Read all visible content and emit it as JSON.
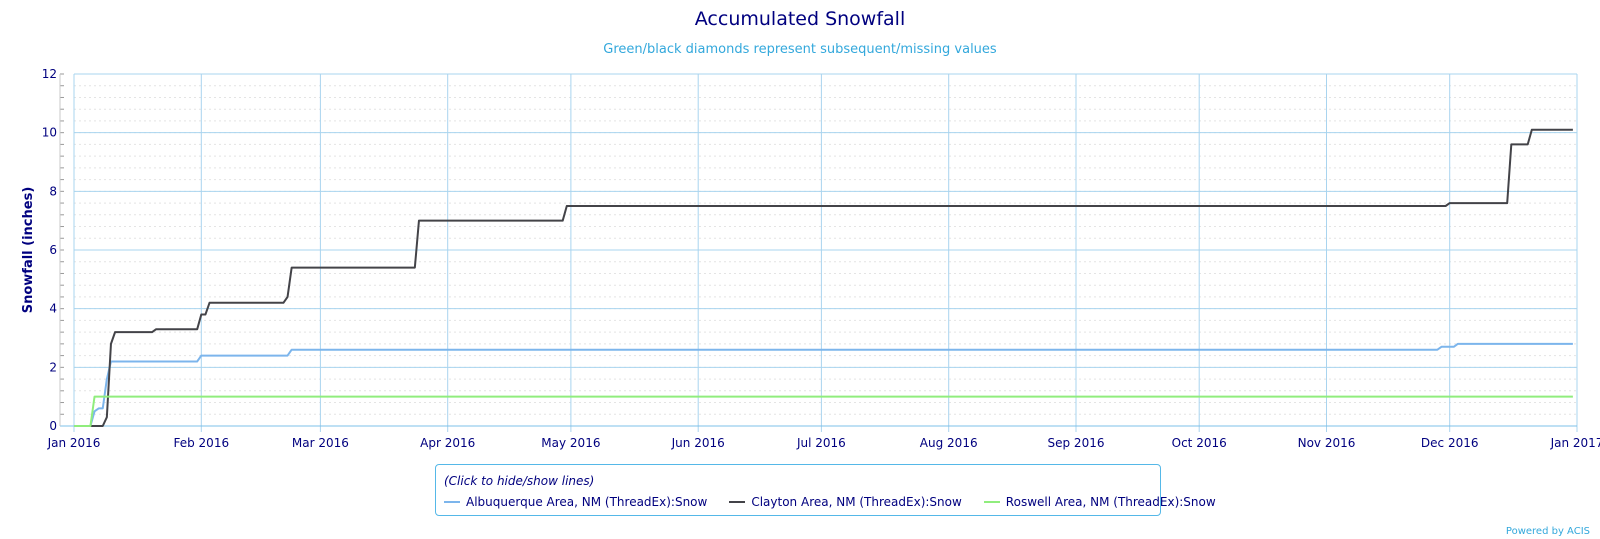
{
  "chart_data": {
    "type": "line",
    "title": "Accumulated Snowfall",
    "subtitle": "Green/black diamonds represent subsequent/missing values",
    "ylabel": "Snowfall (inches)",
    "xlabel": "",
    "ylim": [
      0,
      12
    ],
    "y_ticks": [
      0,
      2,
      4,
      6,
      8,
      10,
      12
    ],
    "xlim": [
      "2016-01-01",
      "2017-01-01"
    ],
    "x_ticks": [
      {
        "date": "2016-01-01",
        "label": "Jan 2016"
      },
      {
        "date": "2016-02-01",
        "label": "Feb 2016"
      },
      {
        "date": "2016-03-01",
        "label": "Mar 2016"
      },
      {
        "date": "2016-04-01",
        "label": "Apr 2016"
      },
      {
        "date": "2016-05-01",
        "label": "May 2016"
      },
      {
        "date": "2016-06-01",
        "label": "Jun 2016"
      },
      {
        "date": "2016-07-01",
        "label": "Jul 2016"
      },
      {
        "date": "2016-08-01",
        "label": "Aug 2016"
      },
      {
        "date": "2016-09-01",
        "label": "Sep 2016"
      },
      {
        "date": "2016-10-01",
        "label": "Oct 2016"
      },
      {
        "date": "2016-11-01",
        "label": "Nov 2016"
      },
      {
        "date": "2016-12-01",
        "label": "Dec 2016"
      },
      {
        "date": "2017-01-01",
        "label": "Jan 2017"
      }
    ],
    "grid": true,
    "legend_position": "bottom-center",
    "legend_hint": "(Click to hide/show lines)",
    "series": [
      {
        "name": "Albuquerque Area, NM (ThreadEx):Snow",
        "color": "#7cb5ec",
        "points": [
          [
            "2016-01-01",
            0
          ],
          [
            "2016-01-05",
            0
          ],
          [
            "2016-01-06",
            0.5
          ],
          [
            "2016-01-07",
            0.6
          ],
          [
            "2016-01-08",
            0.6
          ],
          [
            "2016-01-09",
            1.6
          ],
          [
            "2016-01-10",
            2.2
          ],
          [
            "2016-01-31",
            2.2
          ],
          [
            "2016-02-01",
            2.4
          ],
          [
            "2016-02-22",
            2.4
          ],
          [
            "2016-02-23",
            2.6
          ],
          [
            "2016-11-28",
            2.6
          ],
          [
            "2016-11-29",
            2.7
          ],
          [
            "2016-12-02",
            2.7
          ],
          [
            "2016-12-03",
            2.8
          ],
          [
            "2016-12-31",
            2.8
          ]
        ]
      },
      {
        "name": "Clayton Area, NM (ThreadEx):Snow",
        "color": "#434348",
        "points": [
          [
            "2016-01-01",
            0
          ],
          [
            "2016-01-07",
            0
          ],
          [
            "2016-01-08",
            0
          ],
          [
            "2016-01-09",
            0.3
          ],
          [
            "2016-01-10",
            2.8
          ],
          [
            "2016-01-11",
            3.2
          ],
          [
            "2016-01-20",
            3.2
          ],
          [
            "2016-01-21",
            3.3
          ],
          [
            "2016-01-31",
            3.3
          ],
          [
            "2016-02-01",
            3.8
          ],
          [
            "2016-02-02",
            3.8
          ],
          [
            "2016-02-03",
            4.2
          ],
          [
            "2016-02-21",
            4.2
          ],
          [
            "2016-02-22",
            4.4
          ],
          [
            "2016-02-23",
            5.4
          ],
          [
            "2016-03-24",
            5.4
          ],
          [
            "2016-03-25",
            7.0
          ],
          [
            "2016-04-29",
            7.0
          ],
          [
            "2016-04-30",
            7.5
          ],
          [
            "2016-11-30",
            7.5
          ],
          [
            "2016-12-01",
            7.6
          ],
          [
            "2016-12-15",
            7.6
          ],
          [
            "2016-12-16",
            9.6
          ],
          [
            "2016-12-20",
            9.6
          ],
          [
            "2016-12-21",
            10.1
          ],
          [
            "2016-12-31",
            10.1
          ]
        ]
      },
      {
        "name": "Roswell Area, NM (ThreadEx):Snow",
        "color": "#90ed7d",
        "points": [
          [
            "2016-01-01",
            0
          ],
          [
            "2016-01-05",
            0
          ],
          [
            "2016-01-06",
            1.0
          ],
          [
            "2016-12-31",
            1.0
          ]
        ]
      }
    ]
  },
  "credit": "Powered by ACIS"
}
